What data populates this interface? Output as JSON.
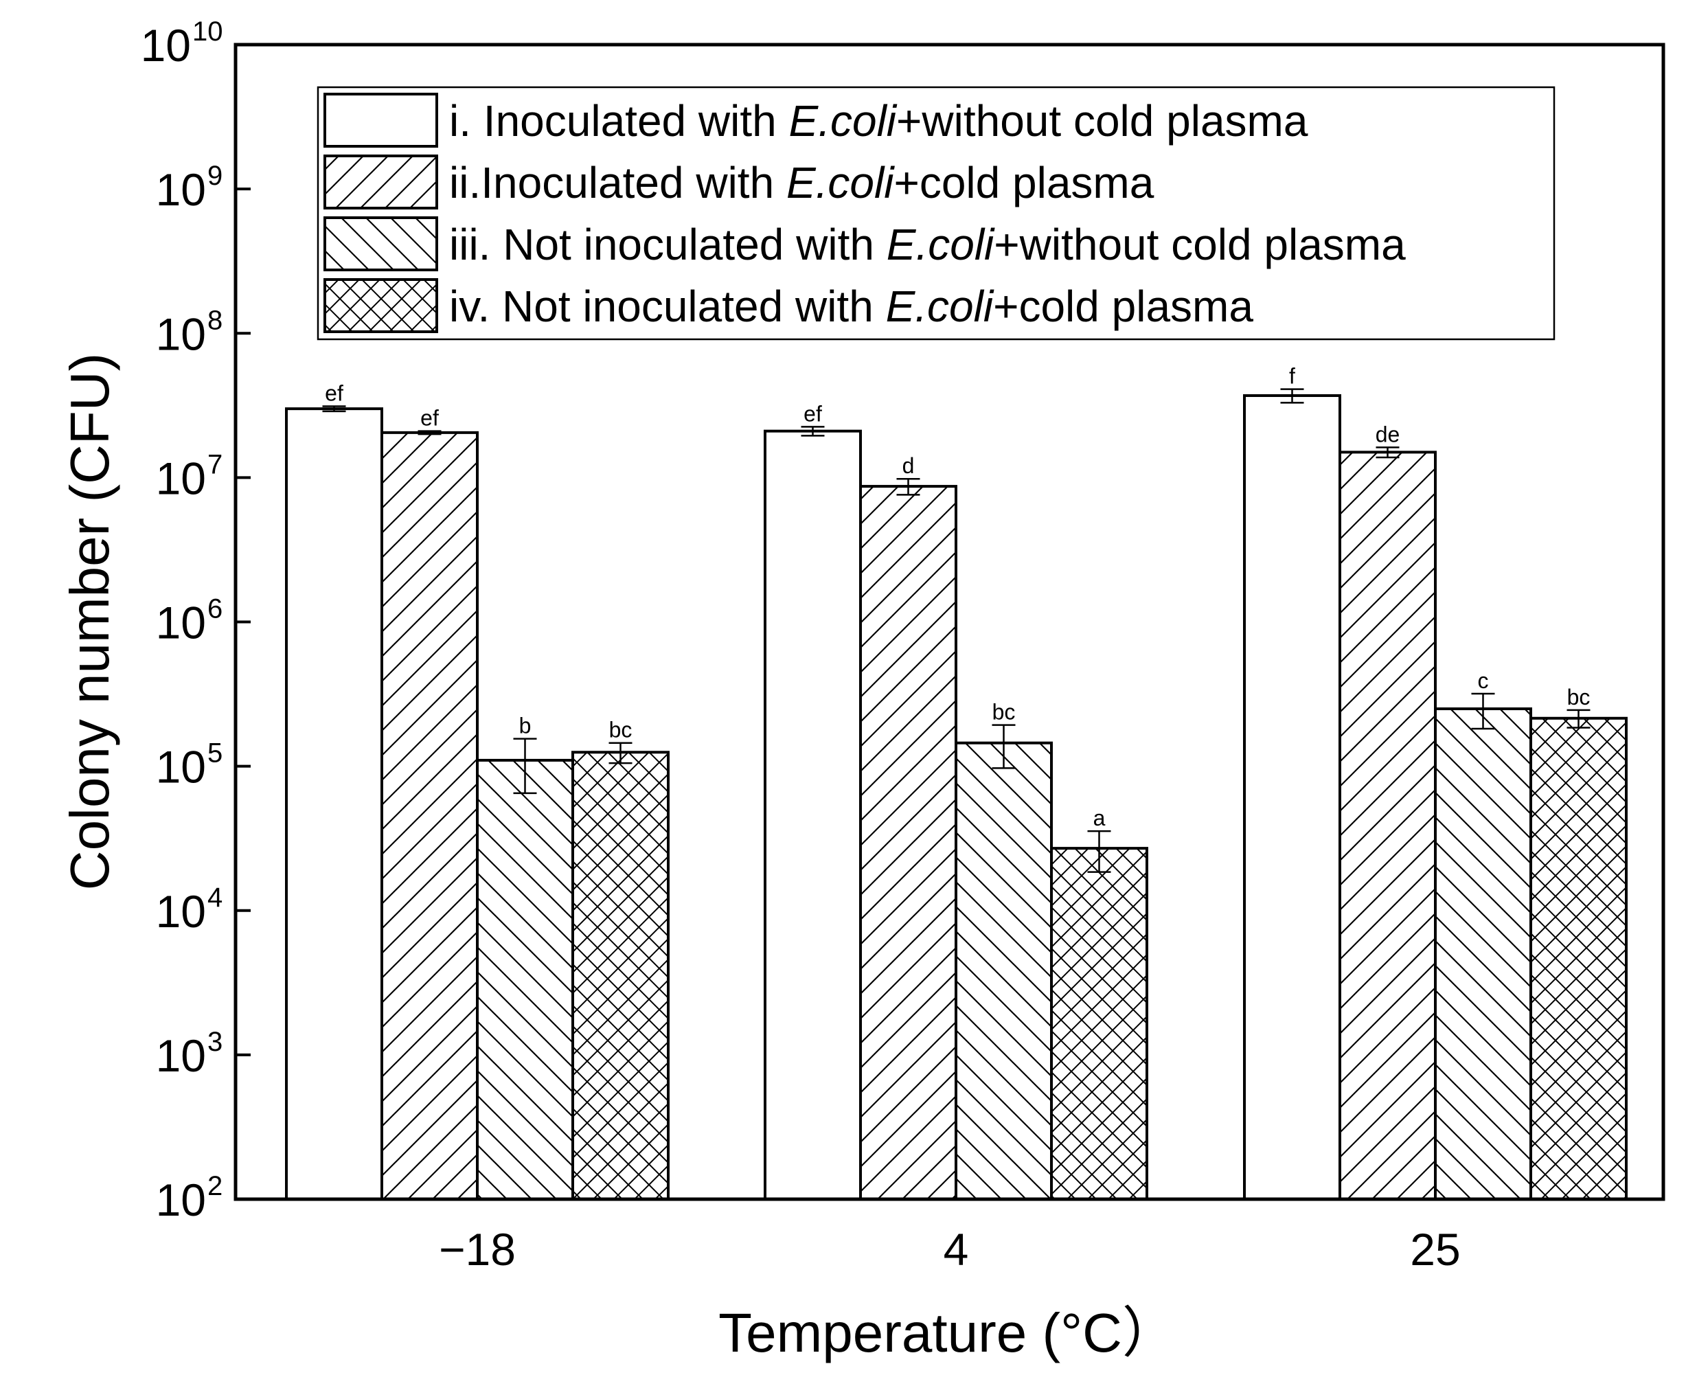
{
  "chart_data": {
    "type": "bar",
    "scale": "log",
    "title": "",
    "xlabel": "Temperature (°C）",
    "ylabel": "Colony number (CFU)",
    "ylim": [
      100,
      10000000000
    ],
    "y_ticks": [
      {
        "value": 100,
        "base": "10",
        "exp": "2"
      },
      {
        "value": 1000,
        "base": "10",
        "exp": "3"
      },
      {
        "value": 10000,
        "base": "10",
        "exp": "4"
      },
      {
        "value": 100000,
        "base": "10",
        "exp": "5"
      },
      {
        "value": 1000000,
        "base": "10",
        "exp": "6"
      },
      {
        "value": 10000000,
        "base": "10",
        "exp": "7"
      },
      {
        "value": 100000000,
        "base": "10",
        "exp": "8"
      },
      {
        "value": 1000000000,
        "base": "10",
        "exp": "9"
      },
      {
        "value": 10000000000,
        "base": "10",
        "exp": "10"
      }
    ],
    "categories": [
      "−18",
      "4",
      "25"
    ],
    "legend_position": "top",
    "series": [
      {
        "name": "i. Inoculated with E.coli+without cold plasma",
        "legend_pre": "i. Inoculated with ",
        "legend_italic": "E.coli",
        "legend_post": "+without cold plasma",
        "pattern": "none",
        "values": [
          30000000,
          21000000,
          37000000
        ],
        "errors": [
          1200000,
          1500000,
          4000000
        ],
        "labels": [
          "ef",
          "ef",
          "f"
        ]
      },
      {
        "name": "ii.Inoculated with E.coli+cold plasma",
        "legend_pre": "ii.Inoculated with ",
        "legend_italic": "E.coli",
        "legend_post": "+cold plasma",
        "pattern": "forward-diagonal",
        "values": [
          20500000,
          8700000,
          15000000
        ],
        "errors": [
          500000,
          1100000,
          1200000
        ],
        "labels": [
          "ef",
          "d",
          "de"
        ]
      },
      {
        "name": "iii. Not inoculated with E.coli+without cold plasma",
        "legend_pre": "iii. Not inoculated with ",
        "legend_italic": "E.coli",
        "legend_post": "+without cold plasma",
        "pattern": "back-diagonal",
        "values": [
          110000,
          145000,
          250000
        ],
        "errors": [
          45000,
          48000,
          68000
        ],
        "labels": [
          "b",
          "bc",
          "c"
        ]
      },
      {
        "name": "iv. Not inoculated with E.coli+cold plasma",
        "legend_pre": "iv. Not inoculated with ",
        "legend_italic": "E.coli",
        "legend_post": "+cold plasma",
        "pattern": "crosshatch",
        "values": [
          125000,
          27000,
          215000
        ],
        "errors": [
          20000,
          8500,
          30000
        ],
        "labels": [
          "bc",
          "a",
          "bc"
        ]
      }
    ]
  }
}
